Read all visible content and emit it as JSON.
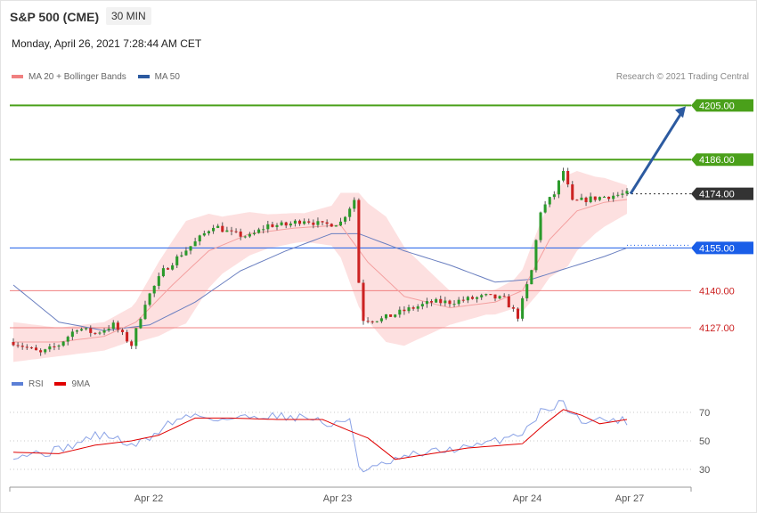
{
  "header": {
    "title": "S&P 500 (CME)",
    "timeframe": "30 MIN",
    "datetime": "Monday, April 26, 2021 7:28:44 AM CET"
  },
  "legend_main": {
    "items": [
      {
        "label": "MA 20 + Bollinger Bands",
        "color": "#f08080"
      },
      {
        "label": "MA 50",
        "color": "#2c5aa0"
      }
    ],
    "credit": "Research © 2021 Trading Central"
  },
  "legend_rsi": {
    "items": [
      {
        "label": "RSI",
        "color": "#5b7fd6"
      },
      {
        "label": "9MA",
        "color": "#e00000"
      }
    ]
  },
  "colors": {
    "up": "#2a9a2a",
    "down": "#cc2222",
    "band": "#fde0e0",
    "ma20": "#f4a0a0",
    "ma50": "#6a7fc0",
    "resistance": "#4aa01a",
    "support": "#f08080",
    "pivot": "#1a5ee8",
    "last": "#333333",
    "arrow": "#2c5aa0"
  },
  "chart_data": [
    {
      "type": "candlestick",
      "title": "S&P 500 (CME)",
      "interval": "30 MIN",
      "ylim": [
        4112,
        4212
      ],
      "x_ticks": [
        "Apr 22",
        "Apr 23",
        "Apr 24",
        "Apr 27"
      ],
      "levels": [
        {
          "value": 4205.0,
          "label": "4205.00",
          "kind": "resistance"
        },
        {
          "value": 4186.0,
          "label": "4186.00",
          "kind": "resistance"
        },
        {
          "value": 4174.0,
          "label": "4174.00",
          "kind": "last"
        },
        {
          "value": 4155.0,
          "label": "4155.00",
          "kind": "pivot"
        },
        {
          "value": 4140.0,
          "label": "4140.00",
          "kind": "support"
        },
        {
          "value": 4127.0,
          "label": "4127.00",
          "kind": "support"
        }
      ],
      "forecast_arrow": {
        "from": 4174.0,
        "to": 4205.0
      },
      "anchors": [
        [
          0,
          4122
        ],
        [
          6,
          4118
        ],
        [
          10,
          4121
        ],
        [
          14,
          4127
        ],
        [
          18,
          4125
        ],
        [
          22,
          4128
        ],
        [
          26,
          4121
        ],
        [
          29,
          4136
        ],
        [
          33,
          4147
        ],
        [
          37,
          4153
        ],
        [
          40,
          4157
        ],
        [
          44,
          4163
        ],
        [
          48,
          4160
        ],
        [
          52,
          4159
        ],
        [
          56,
          4163
        ],
        [
          60,
          4163
        ],
        [
          64,
          4165
        ],
        [
          68,
          4163
        ],
        [
          72,
          4164
        ],
        [
          75,
          4172
        ],
        [
          76,
          4143
        ],
        [
          77,
          4130
        ],
        [
          81,
          4130
        ],
        [
          86,
          4133
        ],
        [
          92,
          4136
        ],
        [
          96,
          4136
        ],
        [
          100,
          4137
        ],
        [
          104,
          4138
        ],
        [
          108,
          4137
        ],
        [
          111,
          4131
        ],
        [
          114,
          4147
        ],
        [
          116,
          4168
        ],
        [
          119,
          4174
        ],
        [
          121,
          4182
        ],
        [
          123,
          4171
        ],
        [
          126,
          4172
        ],
        [
          130,
          4173
        ],
        [
          135,
          4174
        ]
      ],
      "ma20_anchors": [
        [
          0,
          4122
        ],
        [
          10,
          4122
        ],
        [
          20,
          4124
        ],
        [
          27,
          4129
        ],
        [
          35,
          4142
        ],
        [
          43,
          4154
        ],
        [
          52,
          4160
        ],
        [
          62,
          4162
        ],
        [
          72,
          4163
        ],
        [
          78,
          4150
        ],
        [
          86,
          4138
        ],
        [
          96,
          4134
        ],
        [
          106,
          4136
        ],
        [
          112,
          4140
        ],
        [
          118,
          4158
        ],
        [
          124,
          4168
        ],
        [
          130,
          4171
        ],
        [
          135,
          4172
        ]
      ],
      "ma50_anchors": [
        [
          0,
          4142
        ],
        [
          10,
          4129
        ],
        [
          20,
          4126
        ],
        [
          30,
          4128
        ],
        [
          40,
          4136
        ],
        [
          50,
          4147
        ],
        [
          60,
          4154
        ],
        [
          70,
          4160
        ],
        [
          76,
          4160
        ],
        [
          86,
          4154
        ],
        [
          96,
          4149
        ],
        [
          106,
          4143
        ],
        [
          114,
          4144
        ],
        [
          122,
          4148
        ],
        [
          130,
          4152
        ],
        [
          135,
          4155
        ]
      ],
      "band_width_anchors": [
        [
          0,
          7
        ],
        [
          10,
          5
        ],
        [
          20,
          5
        ],
        [
          26,
          6
        ],
        [
          32,
          13
        ],
        [
          38,
          18
        ],
        [
          46,
          10
        ],
        [
          56,
          6
        ],
        [
          64,
          5
        ],
        [
          70,
          7
        ],
        [
          76,
          20
        ],
        [
          82,
          22
        ],
        [
          88,
          15
        ],
        [
          96,
          6
        ],
        [
          104,
          4
        ],
        [
          110,
          5
        ],
        [
          116,
          12
        ],
        [
          122,
          16
        ],
        [
          128,
          10
        ],
        [
          135,
          5
        ]
      ]
    },
    {
      "type": "line",
      "series": [
        {
          "name": "RSI"
        },
        {
          "name": "9MA"
        }
      ],
      "ylim": [
        20,
        80
      ],
      "y_ticks": [
        30,
        50,
        70
      ],
      "rsi_anchors": [
        [
          0,
          40
        ],
        [
          8,
          42
        ],
        [
          14,
          48
        ],
        [
          18,
          54
        ],
        [
          22,
          53
        ],
        [
          26,
          46
        ],
        [
          30,
          52
        ],
        [
          34,
          62
        ],
        [
          38,
          67
        ],
        [
          40,
          68
        ],
        [
          46,
          65
        ],
        [
          56,
          68
        ],
        [
          66,
          66
        ],
        [
          70,
          60
        ],
        [
          74,
          66
        ],
        [
          76,
          34
        ],
        [
          77,
          28
        ],
        [
          82,
          34
        ],
        [
          88,
          40
        ],
        [
          96,
          44
        ],
        [
          102,
          46
        ],
        [
          108,
          52
        ],
        [
          112,
          56
        ],
        [
          116,
          70
        ],
        [
          121,
          78
        ],
        [
          123,
          67
        ],
        [
          127,
          64
        ],
        [
          131,
          65
        ],
        [
          135,
          64
        ]
      ],
      "ma9_anchors": [
        [
          0,
          42
        ],
        [
          10,
          41
        ],
        [
          18,
          47
        ],
        [
          26,
          50
        ],
        [
          32,
          54
        ],
        [
          40,
          66
        ],
        [
          48,
          66
        ],
        [
          58,
          65
        ],
        [
          68,
          65
        ],
        [
          74,
          57
        ],
        [
          78,
          52
        ],
        [
          84,
          37
        ],
        [
          92,
          41
        ],
        [
          100,
          45
        ],
        [
          108,
          47
        ],
        [
          112,
          48
        ],
        [
          117,
          62
        ],
        [
          121,
          72
        ],
        [
          125,
          68
        ],
        [
          129,
          62
        ],
        [
          133,
          64
        ],
        [
          135,
          65
        ]
      ]
    }
  ]
}
